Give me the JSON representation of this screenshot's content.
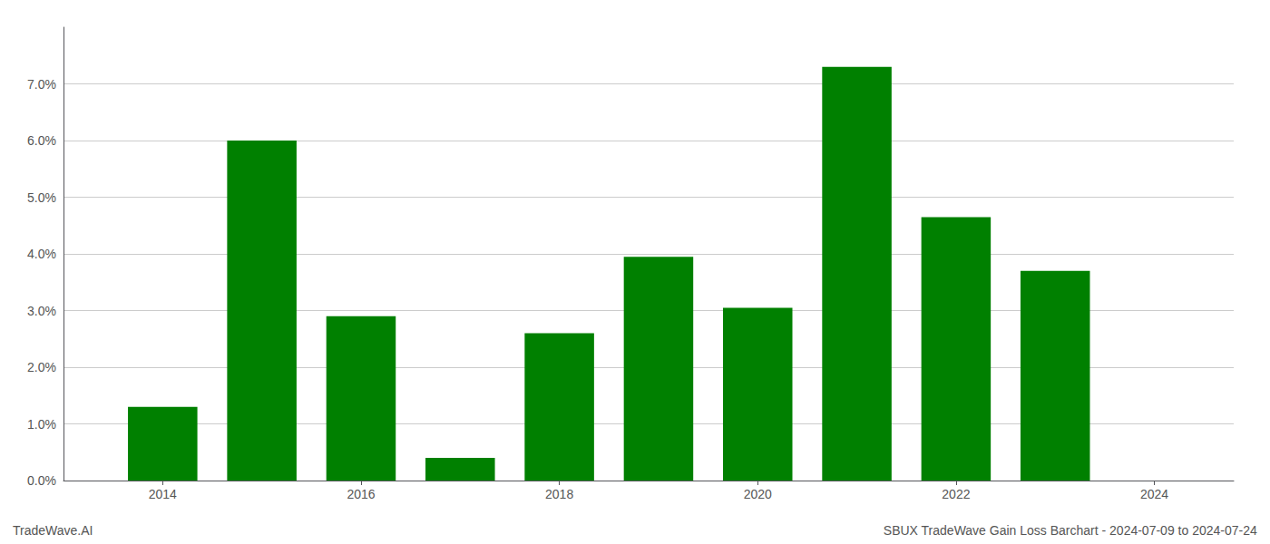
{
  "chart_data": {
    "type": "bar",
    "x": [
      2014,
      2015,
      2016,
      2017,
      2018,
      2019,
      2020,
      2021,
      2022,
      2023,
      2024
    ],
    "values": [
      0.013,
      0.06,
      0.029,
      0.004,
      0.026,
      0.0395,
      0.0305,
      0.073,
      0.0465,
      0.037,
      0.0
    ],
    "color": "#008000",
    "xlim": [
      2013.0,
      2024.8
    ],
    "xticks": [
      2014,
      2016,
      2018,
      2020,
      2022,
      2024
    ],
    "ylim": [
      0,
      0.08
    ],
    "yticks": [
      {
        "value": 0.0,
        "label": "0.0%"
      },
      {
        "value": 0.01,
        "label": "1.0%"
      },
      {
        "value": 0.02,
        "label": "2.0%"
      },
      {
        "value": 0.03,
        "label": "3.0%"
      },
      {
        "value": 0.04,
        "label": "4.0%"
      },
      {
        "value": 0.05,
        "label": "5.0%"
      },
      {
        "value": 0.06,
        "label": "6.0%"
      },
      {
        "value": 0.07,
        "label": "7.0%"
      }
    ],
    "grid": true,
    "annotations": [
      "TradeWave.AI",
      "SBUX TradeWave Gain Loss Barchart - 2024-07-09 to 2024-07-24"
    ]
  }
}
